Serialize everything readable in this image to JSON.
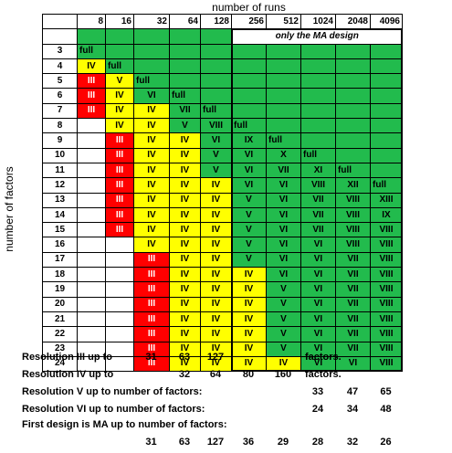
{
  "chart_data": {
    "type": "table",
    "title": "number of runs",
    "ylabel": "number of factors",
    "note": "only the MA design",
    "columns": [
      8,
      16,
      32,
      64,
      128,
      256,
      512,
      1024,
      2048,
      4096
    ],
    "colors": {
      "green": "#22bb4d",
      "yellow": "#ffff00",
      "red": "#ff0000",
      "white": "#ffffff"
    },
    "rows": [
      {
        "factors": 3,
        "cells": [
          [
            "full",
            "G"
          ],
          [
            "",
            "G"
          ],
          [
            "",
            "G"
          ],
          [
            "",
            "G"
          ],
          [
            "",
            "G"
          ],
          [
            "",
            "G"
          ],
          [
            "",
            "G"
          ],
          [
            "",
            "G"
          ],
          [
            "",
            "G"
          ],
          [
            "",
            "G"
          ]
        ]
      },
      {
        "factors": 4,
        "cells": [
          [
            "IV",
            "Y"
          ],
          [
            "full",
            "G"
          ],
          [
            "",
            "G"
          ],
          [
            "",
            "G"
          ],
          [
            "",
            "G"
          ],
          [
            "",
            "G"
          ],
          [
            "",
            "G"
          ],
          [
            "",
            "G"
          ],
          [
            "",
            "G"
          ],
          [
            "",
            "G"
          ]
        ]
      },
      {
        "factors": 5,
        "cells": [
          [
            "III",
            "R"
          ],
          [
            "V",
            "Y"
          ],
          [
            "full",
            "G"
          ],
          [
            "",
            "G"
          ],
          [
            "",
            "G"
          ],
          [
            "",
            "G"
          ],
          [
            "",
            "G"
          ],
          [
            "",
            "G"
          ],
          [
            "",
            "G"
          ],
          [
            "",
            "G"
          ]
        ]
      },
      {
        "factors": 6,
        "cells": [
          [
            "III",
            "R"
          ],
          [
            "IV",
            "Y"
          ],
          [
            "VI",
            "G"
          ],
          [
            "full",
            "G"
          ],
          [
            "",
            "G"
          ],
          [
            "",
            "G"
          ],
          [
            "",
            "G"
          ],
          [
            "",
            "G"
          ],
          [
            "",
            "G"
          ],
          [
            "",
            "G"
          ]
        ]
      },
      {
        "factors": 7,
        "cells": [
          [
            "III",
            "R"
          ],
          [
            "IV",
            "Y"
          ],
          [
            "IV",
            "Y"
          ],
          [
            "VII",
            "G"
          ],
          [
            "full",
            "G"
          ],
          [
            "",
            "G"
          ],
          [
            "",
            "G"
          ],
          [
            "",
            "G"
          ],
          [
            "",
            "G"
          ],
          [
            "",
            "G"
          ]
        ]
      },
      {
        "factors": 8,
        "cells": [
          [
            "",
            "W"
          ],
          [
            "IV",
            "Y"
          ],
          [
            "IV",
            "Y"
          ],
          [
            "V",
            "G"
          ],
          [
            "VIII",
            "G"
          ],
          [
            "full",
            "G"
          ],
          [
            "",
            "G"
          ],
          [
            "",
            "G"
          ],
          [
            "",
            "G"
          ],
          [
            "",
            "G"
          ]
        ]
      },
      {
        "factors": 9,
        "cells": [
          [
            "",
            "W"
          ],
          [
            "III",
            "R"
          ],
          [
            "IV",
            "Y"
          ],
          [
            "IV",
            "Y"
          ],
          [
            "VI",
            "G"
          ],
          [
            "IX",
            "G"
          ],
          [
            "full",
            "G"
          ],
          [
            "",
            "G"
          ],
          [
            "",
            "G"
          ],
          [
            "",
            "G"
          ]
        ]
      },
      {
        "factors": 10,
        "cells": [
          [
            "",
            "W"
          ],
          [
            "III",
            "R"
          ],
          [
            "IV",
            "Y"
          ],
          [
            "IV",
            "Y"
          ],
          [
            "V",
            "G"
          ],
          [
            "VI",
            "G"
          ],
          [
            "X",
            "G"
          ],
          [
            "full",
            "G"
          ],
          [
            "",
            "G"
          ],
          [
            "",
            "G"
          ]
        ]
      },
      {
        "factors": 11,
        "cells": [
          [
            "",
            "W"
          ],
          [
            "III",
            "R"
          ],
          [
            "IV",
            "Y"
          ],
          [
            "IV",
            "Y"
          ],
          [
            "V",
            "G"
          ],
          [
            "VI",
            "G"
          ],
          [
            "VII",
            "G"
          ],
          [
            "XI",
            "G"
          ],
          [
            "full",
            "G"
          ],
          [
            "",
            "G"
          ]
        ]
      },
      {
        "factors": 12,
        "cells": [
          [
            "",
            "W"
          ],
          [
            "III",
            "R"
          ],
          [
            "IV",
            "Y"
          ],
          [
            "IV",
            "Y"
          ],
          [
            "IV",
            "Y"
          ],
          [
            "VI",
            "G"
          ],
          [
            "VI",
            "G"
          ],
          [
            "VIII",
            "G"
          ],
          [
            "XII",
            "G"
          ],
          [
            "full",
            "G"
          ]
        ]
      },
      {
        "factors": 13,
        "cells": [
          [
            "",
            "W"
          ],
          [
            "III",
            "R"
          ],
          [
            "IV",
            "Y"
          ],
          [
            "IV",
            "Y"
          ],
          [
            "IV",
            "Y"
          ],
          [
            "V",
            "G"
          ],
          [
            "VI",
            "G"
          ],
          [
            "VII",
            "G"
          ],
          [
            "VIII",
            "G"
          ],
          [
            "XIII",
            "G"
          ]
        ]
      },
      {
        "factors": 14,
        "cells": [
          [
            "",
            "W"
          ],
          [
            "III",
            "R"
          ],
          [
            "IV",
            "Y"
          ],
          [
            "IV",
            "Y"
          ],
          [
            "IV",
            "Y"
          ],
          [
            "V",
            "G"
          ],
          [
            "VI",
            "G"
          ],
          [
            "VII",
            "G"
          ],
          [
            "VIII",
            "G"
          ],
          [
            "IX",
            "G"
          ]
        ]
      },
      {
        "factors": 15,
        "cells": [
          [
            "",
            "W"
          ],
          [
            "III",
            "R"
          ],
          [
            "IV",
            "Y"
          ],
          [
            "IV",
            "Y"
          ],
          [
            "IV",
            "Y"
          ],
          [
            "V",
            "G"
          ],
          [
            "VI",
            "G"
          ],
          [
            "VII",
            "G"
          ],
          [
            "VIII",
            "G"
          ],
          [
            "VIII",
            "G"
          ]
        ]
      },
      {
        "factors": 16,
        "cells": [
          [
            "",
            "W"
          ],
          [
            "",
            "W"
          ],
          [
            "IV",
            "Y"
          ],
          [
            "IV",
            "Y"
          ],
          [
            "IV",
            "Y"
          ],
          [
            "V",
            "G"
          ],
          [
            "VI",
            "G"
          ],
          [
            "VI",
            "G"
          ],
          [
            "VIII",
            "G"
          ],
          [
            "VIII",
            "G"
          ]
        ]
      },
      {
        "factors": 17,
        "cells": [
          [
            "",
            "W"
          ],
          [
            "",
            "W"
          ],
          [
            "III",
            "R"
          ],
          [
            "IV",
            "Y"
          ],
          [
            "IV",
            "Y"
          ],
          [
            "V",
            "G"
          ],
          [
            "VI",
            "G"
          ],
          [
            "VI",
            "G"
          ],
          [
            "VII",
            "G"
          ],
          [
            "VIII",
            "G"
          ]
        ]
      },
      {
        "factors": 18,
        "cells": [
          [
            "",
            "W"
          ],
          [
            "",
            "W"
          ],
          [
            "III",
            "R"
          ],
          [
            "IV",
            "Y"
          ],
          [
            "IV",
            "Y"
          ],
          [
            "IV",
            "Y"
          ],
          [
            "VI",
            "G"
          ],
          [
            "VI",
            "G"
          ],
          [
            "VII",
            "G"
          ],
          [
            "VIII",
            "G"
          ]
        ]
      },
      {
        "factors": 19,
        "cells": [
          [
            "",
            "W"
          ],
          [
            "",
            "W"
          ],
          [
            "III",
            "R"
          ],
          [
            "IV",
            "Y"
          ],
          [
            "IV",
            "Y"
          ],
          [
            "IV",
            "Y"
          ],
          [
            "V",
            "G"
          ],
          [
            "VI",
            "G"
          ],
          [
            "VII",
            "G"
          ],
          [
            "VIII",
            "G"
          ]
        ]
      },
      {
        "factors": 20,
        "cells": [
          [
            "",
            "W"
          ],
          [
            "",
            "W"
          ],
          [
            "III",
            "R"
          ],
          [
            "IV",
            "Y"
          ],
          [
            "IV",
            "Y"
          ],
          [
            "IV",
            "Y"
          ],
          [
            "V",
            "G"
          ],
          [
            "VI",
            "G"
          ],
          [
            "VII",
            "G"
          ],
          [
            "VIII",
            "G"
          ]
        ]
      },
      {
        "factors": 21,
        "cells": [
          [
            "",
            "W"
          ],
          [
            "",
            "W"
          ],
          [
            "III",
            "R"
          ],
          [
            "IV",
            "Y"
          ],
          [
            "IV",
            "Y"
          ],
          [
            "IV",
            "Y"
          ],
          [
            "V",
            "G"
          ],
          [
            "VI",
            "G"
          ],
          [
            "VII",
            "G"
          ],
          [
            "VIII",
            "G"
          ]
        ]
      },
      {
        "factors": 22,
        "cells": [
          [
            "",
            "W"
          ],
          [
            "",
            "W"
          ],
          [
            "III",
            "R"
          ],
          [
            "IV",
            "Y"
          ],
          [
            "IV",
            "Y"
          ],
          [
            "IV",
            "Y"
          ],
          [
            "V",
            "G"
          ],
          [
            "VI",
            "G"
          ],
          [
            "VII",
            "G"
          ],
          [
            "VIII",
            "G"
          ]
        ]
      },
      {
        "factors": 23,
        "cells": [
          [
            "",
            "W"
          ],
          [
            "",
            "W"
          ],
          [
            "III",
            "R"
          ],
          [
            "IV",
            "Y"
          ],
          [
            "IV",
            "Y"
          ],
          [
            "IV",
            "Y"
          ],
          [
            "V",
            "G"
          ],
          [
            "VI",
            "G"
          ],
          [
            "VII",
            "G"
          ],
          [
            "VIII",
            "G"
          ]
        ]
      },
      {
        "factors": 24,
        "cells": [
          [
            "",
            "W"
          ],
          [
            "",
            "W"
          ],
          [
            "III",
            "R"
          ],
          [
            "IV",
            "Y"
          ],
          [
            "IV",
            "Y"
          ],
          [
            "IV",
            "Y"
          ],
          [
            "IV",
            "Y"
          ],
          [
            "VI",
            "G"
          ],
          [
            "VI",
            "G"
          ],
          [
            "VIII",
            "G"
          ]
        ]
      }
    ],
    "summary": [
      {
        "label": "Resolution III up to",
        "values": [
          "",
          "",
          "31",
          "63",
          "127",
          "",
          "",
          "",
          "",
          ""
        ],
        "suffix": "factors."
      },
      {
        "label": "Resolution IV up to",
        "values": [
          "",
          "",
          "",
          "32",
          "64",
          "80",
          "160",
          "",
          "",
          ""
        ],
        "suffix": "factors."
      },
      {
        "label": "Resolution V up to number of factors:",
        "values": [
          "",
          "",
          "",
          "",
          "",
          "",
          "",
          "33",
          "47",
          "65"
        ]
      },
      {
        "label": "Resolution VI up to number of factors:",
        "values": [
          "",
          "",
          "",
          "",
          "",
          "",
          "",
          "24",
          "34",
          "48"
        ]
      },
      {
        "label": "First design is MA up to number of factors:",
        "values": []
      },
      {
        "label": "",
        "values": [
          "",
          "",
          "31",
          "63",
          "127",
          "36",
          "29",
          "28",
          "32",
          "26"
        ]
      }
    ]
  }
}
